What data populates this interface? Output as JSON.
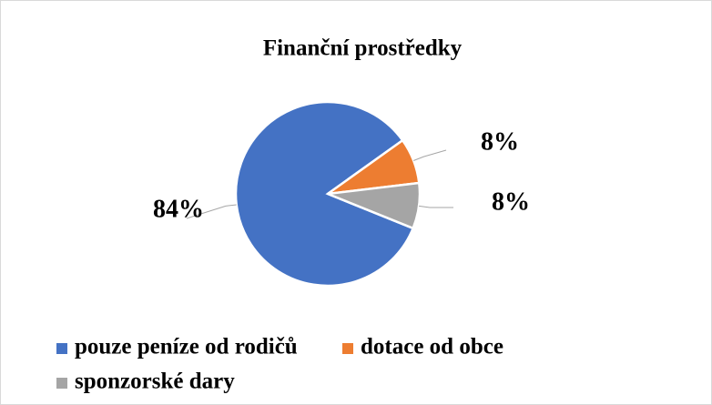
{
  "chart_data": {
    "type": "pie",
    "title": "Finanční prostředky",
    "categories": [
      "pouze peníze od rodičů",
      "dotace od obce",
      "sponzorské dary"
    ],
    "values": [
      84,
      8,
      8
    ],
    "value_labels": [
      "84%",
      "8%",
      "8%"
    ],
    "colors": [
      "#4472c4",
      "#ed7d31",
      "#a5a5a5"
    ],
    "legend": "bottom"
  }
}
